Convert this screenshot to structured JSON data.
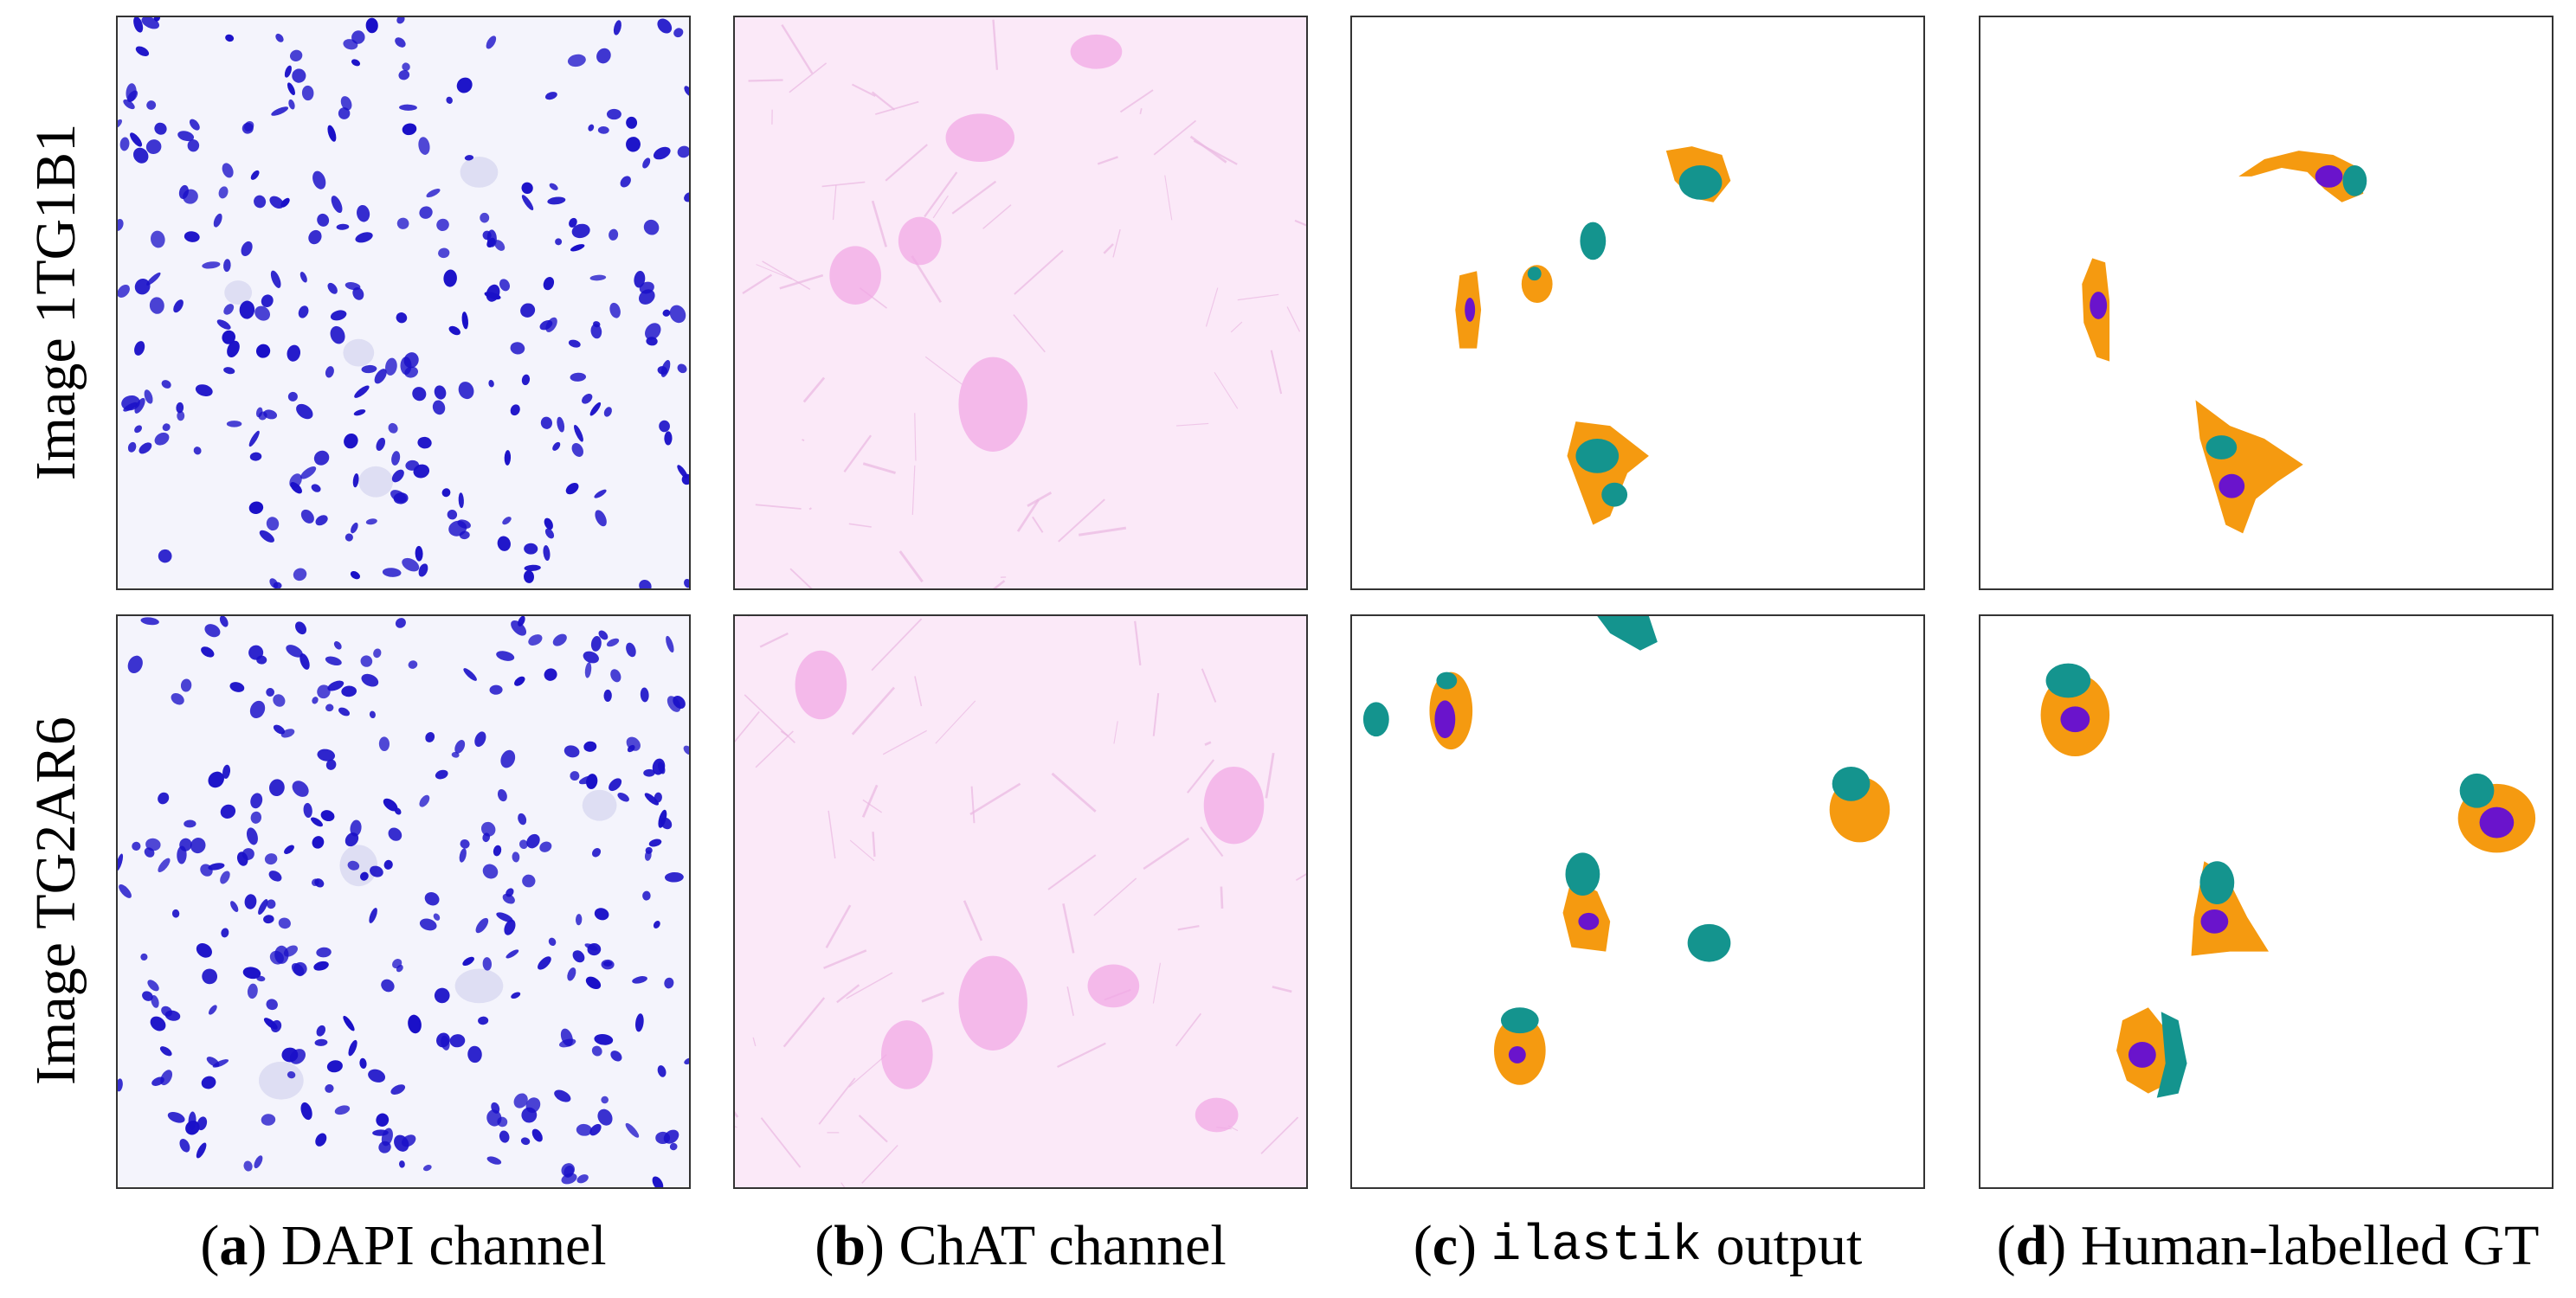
{
  "rows": [
    {
      "label": "Image 1TG1B1"
    },
    {
      "label": "Image TG2AR6"
    }
  ],
  "columns": [
    {
      "letter": "a",
      "caption": "DAPI channel",
      "caption_style": "serif"
    },
    {
      "letter": "b",
      "caption": "ChAT channel",
      "caption_style": "serif"
    },
    {
      "letter": "c",
      "caption": "ilastik",
      "caption_suffix": "output",
      "caption_style": "mono"
    },
    {
      "letter": "d",
      "caption": "Human-labelled GT",
      "caption_style": "serif"
    }
  ],
  "colors": {
    "dapi_nuclei": "#1a10c8",
    "dapi_background": "#f4f4fc",
    "chat_background": "#fbe9f8",
    "chat_cell": "#f2a8e6",
    "seg_teal": "#14948e",
    "seg_orange": "#f59a10",
    "seg_purple": "#6a14cc"
  }
}
